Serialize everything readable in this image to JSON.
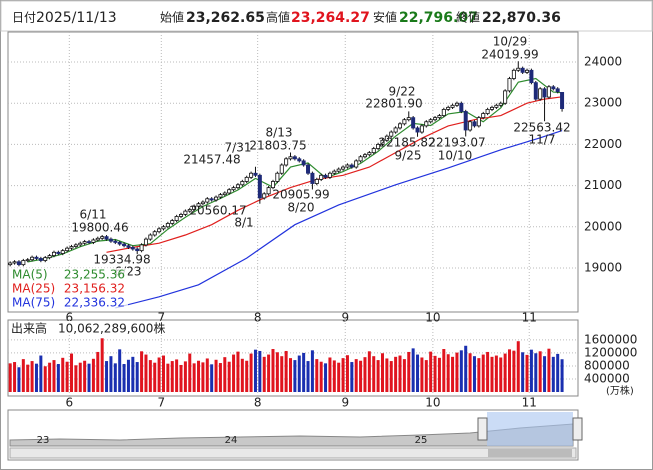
{
  "header": {
    "date_label": "日付",
    "date": "2025/11/13",
    "open_label": "始値",
    "open": "23,262.65",
    "high_label": "高値",
    "high": "23,264.27",
    "low_label": "安値",
    "low": "22,796.07",
    "close_label": "終値",
    "close": "22,870.36"
  },
  "chart_data": [
    {
      "type": "candlestick",
      "up_color": "#ffffff",
      "down_color": "#1e2a78",
      "ylim": [
        17930,
        24730
      ],
      "yticks": [
        19000,
        20000,
        21000,
        22000,
        23000,
        24000
      ],
      "grid": true,
      "xticks": [
        {
          "value": 14,
          "label": "6"
        },
        {
          "value": 35,
          "label": "7"
        },
        {
          "value": 57,
          "label": "8"
        },
        {
          "value": 77,
          "label": "9"
        },
        {
          "value": 97,
          "label": "10"
        },
        {
          "value": 119,
          "label": "11"
        }
      ],
      "ohlc": [
        [
          19080,
          19160,
          19040,
          19120
        ],
        [
          19120,
          19190,
          19080,
          19150
        ],
        [
          19150,
          19190,
          19040,
          19080
        ],
        [
          19080,
          19220,
          19040,
          19180
        ],
        [
          19180,
          19240,
          19140,
          19200
        ],
        [
          19200,
          19300,
          19160,
          19260
        ],
        [
          19260,
          19300,
          19190,
          19230
        ],
        [
          19230,
          19270,
          19140,
          19180
        ],
        [
          19180,
          19290,
          19140,
          19250
        ],
        [
          19250,
          19340,
          19210,
          19300
        ],
        [
          19300,
          19420,
          19260,
          19380
        ],
        [
          19380,
          19420,
          19310,
          19350
        ],
        [
          19350,
          19460,
          19310,
          19420
        ],
        [
          19420,
          19520,
          19380,
          19480
        ],
        [
          19480,
          19560,
          19440,
          19520
        ],
        [
          19520,
          19600,
          19480,
          19560
        ],
        [
          19560,
          19640,
          19520,
          19600
        ],
        [
          19600,
          19680,
          19560,
          19640
        ],
        [
          19640,
          19680,
          19580,
          19620
        ],
        [
          19620,
          19720,
          19580,
          19680
        ],
        [
          19680,
          19760,
          19640,
          19720
        ],
        [
          19720,
          19800.46,
          19680,
          19760
        ],
        [
          19760,
          19800,
          19660,
          19700
        ],
        [
          19700,
          19740,
          19610,
          19650
        ],
        [
          19650,
          19690,
          19580,
          19620
        ],
        [
          19620,
          19660,
          19540,
          19580
        ],
        [
          19580,
          19620,
          19500,
          19540
        ],
        [
          19540,
          19580,
          19460,
          19500
        ],
        [
          19500,
          19540,
          19420,
          19460
        ],
        [
          19460,
          19500,
          19334.98,
          19420
        ],
        [
          19420,
          19600,
          19380,
          19560
        ],
        [
          19560,
          19740,
          19520,
          19700
        ],
        [
          19700,
          19840,
          19660,
          19800
        ],
        [
          19800,
          19920,
          19760,
          19880
        ],
        [
          19880,
          19990,
          19840,
          19950
        ],
        [
          19950,
          20040,
          19910,
          20000
        ],
        [
          20000,
          20120,
          19960,
          20080
        ],
        [
          20080,
          20190,
          20040,
          20150
        ],
        [
          20150,
          20290,
          20110,
          20250
        ],
        [
          20250,
          20340,
          20210,
          20300
        ],
        [
          20300,
          20420,
          20260,
          20380
        ],
        [
          20380,
          20460,
          20340,
          20420
        ],
        [
          20420,
          20540,
          20380,
          20500
        ],
        [
          20500,
          20600,
          20460,
          20560
        ],
        [
          20560,
          20640,
          20520,
          20600
        ],
        [
          20600,
          20720,
          20560,
          20680
        ],
        [
          20680,
          20720,
          20610,
          20650
        ],
        [
          20650,
          20760,
          20610,
          20720
        ],
        [
          20720,
          20820,
          20680,
          20780
        ],
        [
          20780,
          20860,
          20740,
          20820
        ],
        [
          20820,
          20940,
          20780,
          20900
        ],
        [
          20900,
          20990,
          20860,
          20950
        ],
        [
          20950,
          21060,
          20910,
          21020
        ],
        [
          21020,
          21140,
          20980,
          21100
        ],
        [
          21100,
          21240,
          21060,
          21200
        ],
        [
          21200,
          21340,
          21160,
          21300
        ],
        [
          21300,
          21457.48,
          21210,
          21250
        ],
        [
          21250,
          21290,
          20560.17,
          20700
        ],
        [
          20700,
          20840,
          20660,
          20800
        ],
        [
          20800,
          20990,
          20760,
          20950
        ],
        [
          20950,
          21140,
          20910,
          21100
        ],
        [
          21100,
          21340,
          21060,
          21300
        ],
        [
          21300,
          21540,
          21260,
          21500
        ],
        [
          21500,
          21690,
          21460,
          21650
        ],
        [
          21650,
          21803.75,
          21610,
          21700
        ],
        [
          21700,
          21740,
          21610,
          21650
        ],
        [
          21650,
          21690,
          21560,
          21600
        ],
        [
          21600,
          21640,
          21460,
          21500
        ],
        [
          21500,
          21540,
          21260,
          21300
        ],
        [
          21300,
          21340,
          20905.99,
          21050
        ],
        [
          21050,
          21190,
          21010,
          21150
        ],
        [
          21150,
          21290,
          21110,
          21250
        ],
        [
          21250,
          21290,
          21160,
          21200
        ],
        [
          21200,
          21340,
          21160,
          21300
        ],
        [
          21300,
          21390,
          21260,
          21350
        ],
        [
          21350,
          21440,
          21310,
          21400
        ],
        [
          21400,
          21490,
          21360,
          21450
        ],
        [
          21450,
          21540,
          21410,
          21500
        ],
        [
          21500,
          21540,
          21410,
          21450
        ],
        [
          21450,
          21640,
          21410,
          21600
        ],
        [
          21600,
          21740,
          21560,
          21700
        ],
        [
          21700,
          21790,
          21660,
          21750
        ],
        [
          21750,
          21840,
          21710,
          21800
        ],
        [
          21800,
          21940,
          21760,
          21900
        ],
        [
          21900,
          22040,
          21860,
          22000
        ],
        [
          22000,
          22140,
          21960,
          22100
        ],
        [
          22100,
          22240,
          22060,
          22200
        ],
        [
          22200,
          22340,
          22160,
          22300
        ],
        [
          22300,
          22440,
          22260,
          22400
        ],
        [
          22400,
          22540,
          22360,
          22500
        ],
        [
          22500,
          22640,
          22460,
          22600
        ],
        [
          22600,
          22801.9,
          22560,
          22650
        ],
        [
          22650,
          22690,
          22360,
          22400
        ],
        [
          22400,
          22440,
          22185.82,
          22300
        ],
        [
          22300,
          22490,
          22260,
          22450
        ],
        [
          22450,
          22590,
          22410,
          22550
        ],
        [
          22550,
          22640,
          22510,
          22600
        ],
        [
          22600,
          22690,
          22560,
          22650
        ],
        [
          22650,
          22740,
          22610,
          22700
        ],
        [
          22700,
          22890,
          22660,
          22850
        ],
        [
          22850,
          22940,
          22810,
          22900
        ],
        [
          22900,
          22990,
          22860,
          22950
        ],
        [
          22950,
          23040,
          22910,
          23000
        ],
        [
          23000,
          23040,
          22760,
          22800
        ],
        [
          22800,
          22840,
          22193.07,
          22350
        ],
        [
          22350,
          22590,
          22310,
          22550
        ],
        [
          22550,
          22590,
          22410,
          22450
        ],
        [
          22450,
          22690,
          22410,
          22650
        ],
        [
          22650,
          22790,
          22610,
          22750
        ],
        [
          22750,
          22890,
          22710,
          22850
        ],
        [
          22850,
          22940,
          22810,
          22900
        ],
        [
          22900,
          22990,
          22860,
          22950
        ],
        [
          22950,
          23040,
          22910,
          23000
        ],
        [
          23000,
          23340,
          22960,
          23300
        ],
        [
          23300,
          23640,
          23260,
          23600
        ],
        [
          23600,
          23840,
          23560,
          23800
        ],
        [
          23800,
          24019.99,
          23760,
          23850
        ],
        [
          23850,
          23890,
          23710,
          23750
        ],
        [
          23750,
          23840,
          23710,
          23800
        ],
        [
          23800,
          23840,
          23460,
          23500
        ],
        [
          23500,
          23540,
          23060,
          23100
        ],
        [
          23100,
          23390,
          23060,
          23350
        ],
        [
          23350,
          23390,
          22563.42,
          23150
        ],
        [
          23150,
          23440,
          23110,
          23400
        ],
        [
          23400,
          23440,
          23310,
          23350
        ],
        [
          23350,
          23390,
          23240,
          23280
        ],
        [
          23262.65,
          23264.27,
          22796.07,
          22870.36
        ]
      ],
      "series": [
        {
          "name": "MA(5)",
          "color": "#2e8b2e",
          "legend_value": "23,255.36",
          "x": [
            4,
            8,
            12,
            16,
            20,
            24,
            28,
            32,
            36,
            40,
            44,
            48,
            52,
            56,
            60,
            64,
            68,
            72,
            76,
            80,
            84,
            88,
            92,
            96,
            100,
            104,
            108,
            112,
            116,
            120,
            124,
            126
          ],
          "values": [
            19146,
            19224,
            19340,
            19516,
            19652,
            19690,
            19540,
            19588,
            19942,
            20232,
            20492,
            20686,
            20894,
            21174,
            20960,
            21450,
            21550,
            21190,
            21340,
            21540,
            21830,
            22200,
            22510,
            22460,
            22740,
            22800,
            22550,
            22890,
            23510,
            23600,
            23270,
            23255.36
          ]
        },
        {
          "name": "MA(25)",
          "color": "#e0201e",
          "legend_value": "23,156.32",
          "x": [
            22,
            28,
            34,
            40,
            46,
            52,
            58,
            64,
            70,
            76,
            82,
            88,
            94,
            100,
            106,
            112,
            118,
            122,
            126
          ],
          "values": [
            19380,
            19500,
            19600,
            19800,
            20050,
            20400,
            20700,
            20950,
            21150,
            21250,
            21450,
            21800,
            22150,
            22450,
            22600,
            22700,
            23000,
            23100,
            23156.32
          ]
        },
        {
          "name": "MA(75)",
          "color": "#2233dd",
          "legend_value": "22,336.32",
          "x": [
            24,
            34,
            43,
            54,
            65,
            75,
            88,
            100,
            112,
            121,
            126
          ],
          "values": [
            18030,
            18300,
            18590,
            19240,
            20050,
            20530,
            21020,
            21430,
            21870,
            22160,
            22336.32
          ]
        }
      ],
      "annotations": [
        {
          "date": "6/11",
          "price": "19800.46"
        },
        {
          "price": "19334.98",
          "date": "6/23"
        },
        {
          "date": "7/31",
          "price": "21457.48"
        },
        {
          "price": "20560.17",
          "date": "8/1"
        },
        {
          "date": "8/13",
          "price": "21803.75"
        },
        {
          "price": "20905.99",
          "date": "8/20"
        },
        {
          "date": "9/22",
          "price": "22801.90"
        },
        {
          "price": "22185.82",
          "date": "9/25"
        },
        {
          "price": "22193.07",
          "date": "10/10"
        },
        {
          "date": "10/29",
          "price": "24019.99"
        },
        {
          "price": "22563.42",
          "date": "11/7"
        }
      ]
    },
    {
      "type": "bar",
      "title": "出来高",
      "total": "10,062,289,600株",
      "unit": "(万株)",
      "up_color": "#e0141e",
      "down_color": "#1a2fb0",
      "ylim": [
        0,
        2150000
      ],
      "yticks": [
        400000,
        800000,
        1200000,
        1600000
      ],
      "xticks": [
        {
          "value": 14,
          "label": "6"
        },
        {
          "value": 35,
          "label": "7"
        },
        {
          "value": 57,
          "label": "8"
        },
        {
          "value": 77,
          "label": "9"
        },
        {
          "value": 97,
          "label": "10"
        },
        {
          "value": 119,
          "label": "11"
        }
      ],
      "values": [
        880000,
        920000,
        760000,
        1010000,
        840000,
        950000,
        870000,
        1120000,
        790000,
        900000,
        980000,
        860000,
        1050000,
        930000,
        1180000,
        820000,
        900000,
        960000,
        870000,
        1020000,
        1230000,
        1650000,
        950000,
        1100000,
        880000,
        1310000,
        860000,
        990000,
        1080000,
        920000,
        1250000,
        1150000,
        980000,
        900000,
        1060000,
        1120000,
        870000,
        950000,
        1000000,
        830000,
        940000,
        1180000,
        880000,
        960000,
        910000,
        1030000,
        850000,
        990000,
        890000,
        1070000,
        930000,
        1150000,
        1240000,
        1020000,
        960000,
        1180000,
        1300000,
        1260000,
        1080000,
        1150000,
        1320000,
        1220000,
        1100000,
        1260000,
        1040000,
        980000,
        1120000,
        1200000,
        950000,
        1280000,
        1010000,
        930000,
        880000,
        1060000,
        970000,
        900000,
        1040000,
        1130000,
        920000,
        1010000,
        960000,
        1070000,
        1250000,
        1100000,
        980000,
        1190000,
        1030000,
        950000,
        1080000,
        1120000,
        1010000,
        1230000,
        1340000,
        1150000,
        1060000,
        980000,
        1240000,
        1110000,
        1050000,
        1320000,
        1160000,
        1080000,
        1210000,
        1280000,
        1420000,
        1190000,
        1100000,
        1040000,
        1150000,
        1230000,
        1080000,
        1120000,
        1060000,
        1180000,
        1310000,
        1270000,
        1560000,
        1220000,
        1140000,
        1300000,
        1190000,
        1250000,
        1100000,
        1330000,
        1080000,
        1170000,
        1006228.96
      ]
    }
  ],
  "navigator": {
    "labels": [
      "23",
      "24",
      "25"
    ]
  }
}
